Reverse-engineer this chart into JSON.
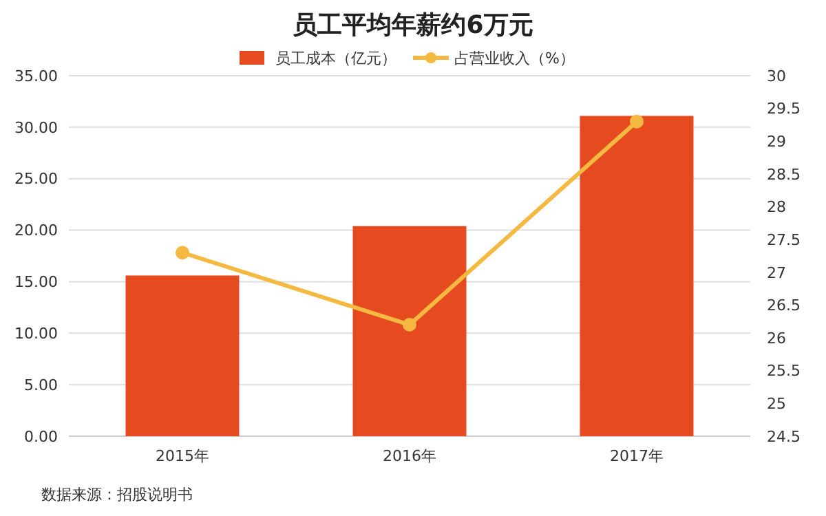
{
  "chart_data": {
    "type": "bar",
    "title": "员工平均年薪约6万元",
    "categories": [
      "2015年",
      "2016年",
      "2017年"
    ],
    "series": [
      {
        "name": "员工成本（亿元）",
        "color": "#e64a1f",
        "values": [
          15.6,
          20.4,
          31.1
        ]
      },
      {
        "name": "占营业收入（%）",
        "type": "line",
        "axis": "y2",
        "color": "#f5b942",
        "values": [
          27.3,
          26.2,
          29.3
        ]
      }
    ],
    "ylim": [
      0,
      35
    ],
    "yticks": [
      {
        "value": 0,
        "label": "0.00"
      },
      {
        "value": 5,
        "label": "5.00"
      },
      {
        "value": 10,
        "label": "10.00"
      },
      {
        "value": 15,
        "label": "15.00"
      },
      {
        "value": 20,
        "label": "20.00"
      },
      {
        "value": 25,
        "label": "25.00"
      },
      {
        "value": 30,
        "label": "30.00"
      },
      {
        "value": 35,
        "label": "35.00"
      }
    ],
    "y2lim": [
      24.5,
      30
    ],
    "y2ticks": [
      24.5,
      25,
      25.5,
      26,
      26.5,
      27,
      27.5,
      28,
      28.5,
      29,
      29.5,
      30
    ],
    "grid": "y",
    "legend": "top",
    "marker": "circle",
    "annotations": [
      "数据来源：招股说明书"
    ]
  }
}
